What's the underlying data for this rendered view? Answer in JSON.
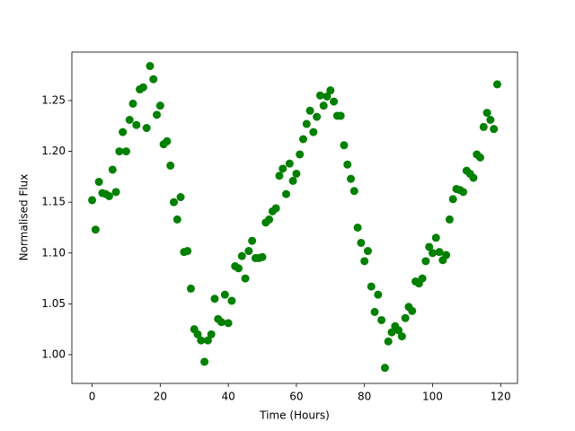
{
  "chart_data": {
    "type": "scatter",
    "xlabel": "Time (Hours)",
    "ylabel": "Normalised Flux",
    "color": "#008000",
    "x": [
      0,
      1,
      2,
      3,
      4,
      5,
      6,
      7,
      8,
      9,
      10,
      11,
      12,
      13,
      14,
      15,
      16,
      17,
      18,
      19,
      20,
      21,
      22,
      23,
      24,
      25,
      26,
      27,
      28,
      29,
      30,
      31,
      32,
      33,
      34,
      35,
      36,
      37,
      38,
      39,
      40,
      41,
      42,
      43,
      44,
      45,
      46,
      47,
      48,
      49,
      50,
      51,
      52,
      53,
      54,
      55,
      56,
      57,
      58,
      59,
      60,
      61,
      62,
      63,
      64,
      65,
      66,
      67,
      68,
      69,
      70,
      71,
      72,
      73,
      74,
      75,
      76,
      77,
      78,
      79,
      80,
      81,
      82,
      83,
      84,
      85,
      86,
      87,
      88,
      89,
      90,
      91,
      92,
      93,
      94,
      95,
      96,
      97,
      98,
      99,
      100,
      101,
      102,
      103,
      104,
      105,
      106,
      107,
      108,
      109,
      110,
      111,
      112,
      113,
      114,
      115,
      116,
      117,
      118,
      119
    ],
    "y": [
      1.152,
      1.123,
      1.17,
      1.159,
      1.158,
      1.156,
      1.182,
      1.16,
      1.2,
      1.219,
      1.2,
      1.231,
      1.247,
      1.226,
      1.261,
      1.263,
      1.223,
      1.284,
      1.271,
      1.236,
      1.245,
      1.207,
      1.21,
      1.186,
      1.15,
      1.133,
      1.155,
      1.101,
      1.102,
      1.065,
      1.025,
      1.02,
      1.014,
      0.993,
      1.014,
      1.02,
      1.055,
      1.035,
      1.032,
      1.059,
      1.031,
      1.053,
      1.087,
      1.085,
      1.097,
      1.075,
      1.102,
      1.112,
      1.095,
      1.095,
      1.096,
      1.13,
      1.133,
      1.141,
      1.144,
      1.176,
      1.183,
      1.158,
      1.188,
      1.171,
      1.178,
      1.197,
      1.212,
      1.227,
      1.24,
      1.219,
      1.234,
      1.255,
      1.245,
      1.254,
      1.26,
      1.249,
      1.235,
      1.235,
      1.206,
      1.187,
      1.173,
      1.161,
      1.125,
      1.11,
      1.092,
      1.102,
      1.067,
      1.042,
      1.059,
      1.034,
      0.987,
      1.013,
      1.022,
      1.028,
      1.024,
      1.018,
      1.036,
      1.047,
      1.043,
      1.072,
      1.07,
      1.075,
      1.092,
      1.106,
      1.1,
      1.115,
      1.101,
      1.093,
      1.098,
      1.133,
      1.153,
      1.163,
      1.162,
      1.16,
      1.181,
      1.178,
      1.174,
      1.197,
      1.194,
      1.224,
      1.238,
      1.231,
      1.222,
      1.266
    ],
    "xlim": [
      -5.95,
      124.95
    ],
    "xticks": [
      0,
      20,
      40,
      60,
      80,
      100,
      120
    ],
    "ylim": [
      0.9717,
      1.2977
    ],
    "yticks": [
      {
        "value": 1.0,
        "label": "1.00"
      },
      {
        "value": 1.05,
        "label": "1.05"
      },
      {
        "value": 1.1,
        "label": "1.10"
      },
      {
        "value": 1.15,
        "label": "1.15"
      },
      {
        "value": 1.2,
        "label": "1.20"
      },
      {
        "value": 1.25,
        "label": "1.25"
      }
    ]
  }
}
